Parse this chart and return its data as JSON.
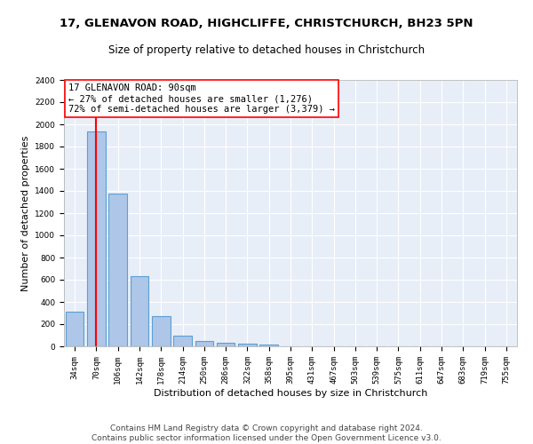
{
  "title_line1": "17, GLENAVON ROAD, HIGHCLIFFE, CHRISTCHURCH, BH23 5PN",
  "title_line2": "Size of property relative to detached houses in Christchurch",
  "xlabel": "Distribution of detached houses by size in Christchurch",
  "ylabel": "Number of detached properties",
  "categories": [
    "34sqm",
    "70sqm",
    "106sqm",
    "142sqm",
    "178sqm",
    "214sqm",
    "250sqm",
    "286sqm",
    "322sqm",
    "358sqm",
    "395sqm",
    "431sqm",
    "467sqm",
    "503sqm",
    "539sqm",
    "575sqm",
    "611sqm",
    "647sqm",
    "683sqm",
    "719sqm",
    "755sqm"
  ],
  "values": [
    315,
    1940,
    1380,
    635,
    275,
    100,
    47,
    32,
    27,
    20,
    0,
    0,
    0,
    0,
    0,
    0,
    0,
    0,
    0,
    0,
    0
  ],
  "bar_color": "#aec6e8",
  "bar_edge_color": "#5a9fd4",
  "vline_color": "red",
  "vline_x": 1,
  "annotation_box_text": "17 GLENAVON ROAD: 90sqm\n← 27% of detached houses are smaller (1,276)\n72% of semi-detached houses are larger (3,379) →",
  "ylim": [
    0,
    2400
  ],
  "yticks": [
    0,
    200,
    400,
    600,
    800,
    1000,
    1200,
    1400,
    1600,
    1800,
    2000,
    2200,
    2400
  ],
  "footer_text": "Contains HM Land Registry data © Crown copyright and database right 2024.\nContains public sector information licensed under the Open Government Licence v3.0.",
  "background_color": "#e8eef8",
  "grid_color": "#ffffff",
  "title_fontsize": 9.5,
  "subtitle_fontsize": 8.5,
  "annotation_fontsize": 7.5,
  "footer_fontsize": 6.5,
  "ylabel_fontsize": 8,
  "xlabel_fontsize": 8,
  "tick_fontsize": 6.5
}
